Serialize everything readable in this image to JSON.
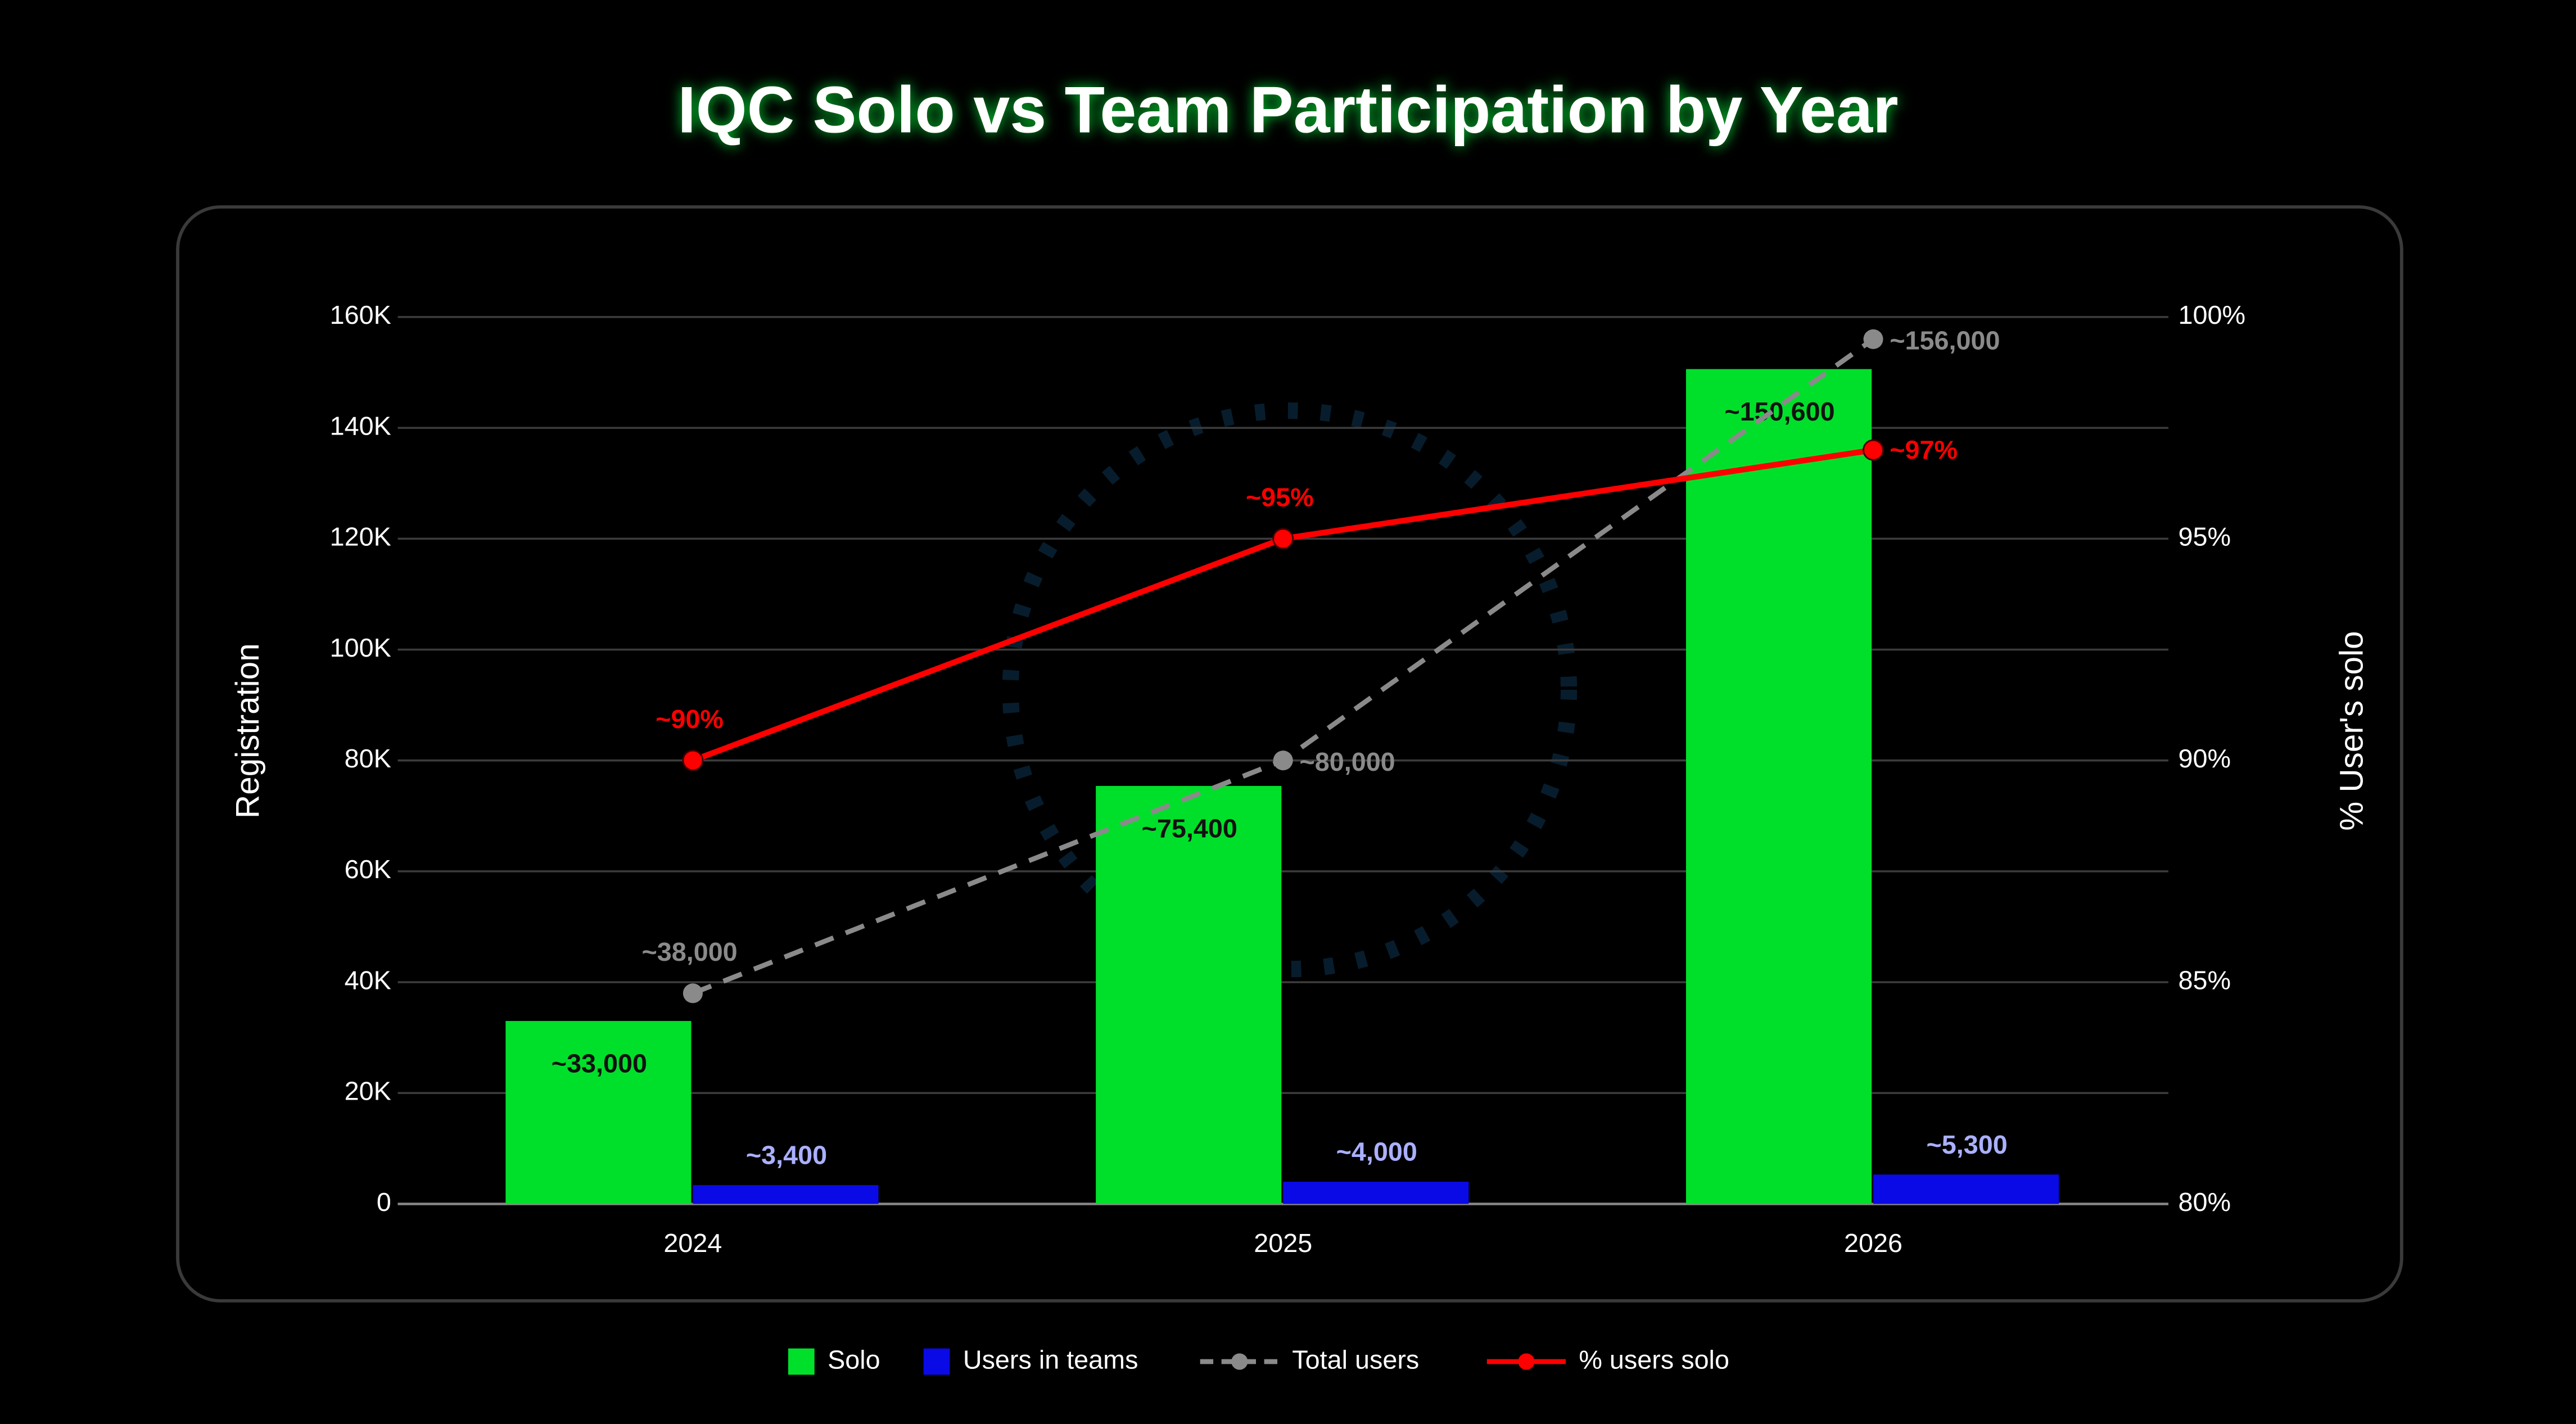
{
  "chart_data": {
    "type": "bar",
    "title": "IQC Solo vs Team Participation by Year",
    "y_label": "Registration",
    "y2_label": "% User's solo",
    "categories": [
      "2024",
      "2025",
      "2026"
    ],
    "series": [
      {
        "name": "Solo",
        "type": "bar",
        "color": "#00e02a",
        "values": [
          33000,
          75400,
          150600
        ],
        "value_labels": [
          "~33,000",
          "~75,400",
          "~150,600"
        ]
      },
      {
        "name": "Users in teams",
        "type": "bar",
        "color": "#0a0ae6",
        "values": [
          3400,
          4000,
          5300
        ],
        "value_labels": [
          "~3,400",
          "~4,000",
          "~5,300"
        ]
      },
      {
        "name": "Total users",
        "type": "line",
        "line_style": "dashed",
        "color": "#8a8a8a",
        "values": [
          38000,
          80000,
          156000
        ],
        "value_labels": [
          "~38,000",
          "~80,000",
          "~156,000"
        ]
      },
      {
        "name": "% users solo",
        "type": "line",
        "line_style": "solid",
        "axis": "y2",
        "color": "#ff0000",
        "values": [
          90,
          95,
          97
        ],
        "value_labels": [
          "~90%",
          "~95%",
          "~97%"
        ]
      }
    ],
    "ylim": [
      0,
      160000
    ],
    "yticks": [
      0,
      {
        "value": 20000,
        "label": "20K"
      },
      {
        "value": 40000,
        "label": "40K"
      },
      {
        "value": 60000,
        "label": "60K"
      },
      {
        "value": 80000,
        "label": "80K"
      },
      {
        "value": 100000,
        "label": "100K"
      },
      {
        "value": 120000,
        "label": "120K"
      },
      {
        "value": 140000,
        "label": "140K"
      },
      {
        "value": 160000,
        "label": "160K"
      }
    ],
    "y2lim": [
      80,
      100
    ],
    "y2ticks": [
      {
        "value": 80,
        "label": "80%"
      },
      {
        "value": 85,
        "label": "85%"
      },
      {
        "value": 90,
        "label": "90%"
      },
      {
        "value": 95,
        "label": "95%"
      },
      {
        "value": 100,
        "label": "100%"
      }
    ],
    "grid": true,
    "legend": "bottom"
  }
}
